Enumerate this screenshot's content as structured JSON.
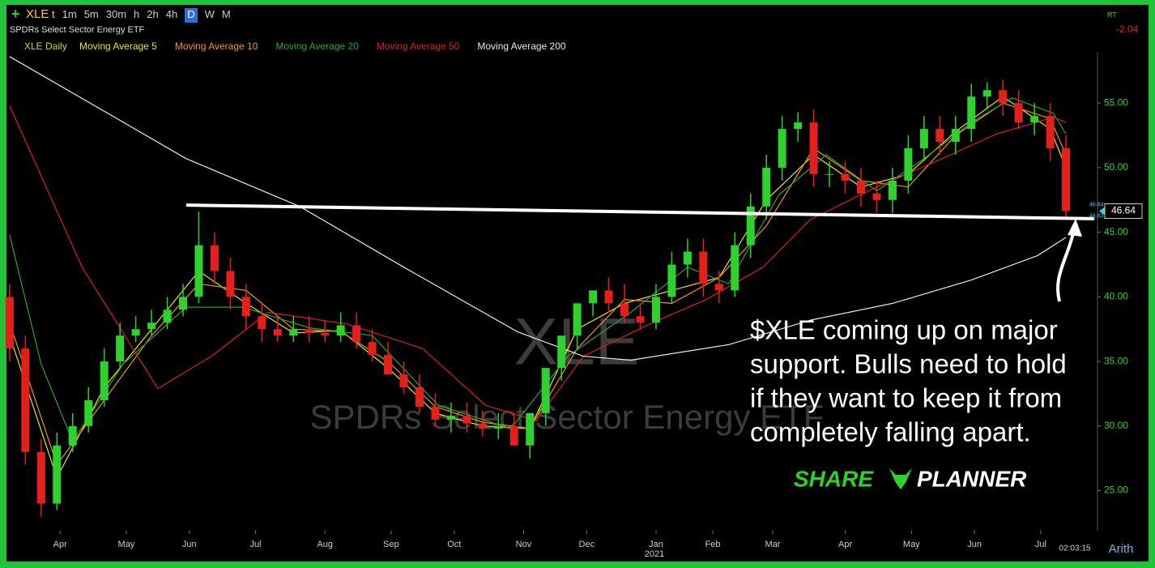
{
  "toolbar": {
    "symbol": "XLE",
    "intervals": [
      "t",
      "1m",
      "5m",
      "30m",
      "h",
      "2h",
      "4h",
      "D",
      "W",
      "M"
    ],
    "realtime": "RT",
    "change": "-2.04"
  },
  "legend_main": "XLE Daily",
  "annotation": [
    "$XLE coming up on major",
    "support. Bulls need to hold",
    "if they want to keep it from",
    "completely falling apart."
  ],
  "logo": {
    "left": "SHARE",
    "right": "PLANNER"
  },
  "footer": {
    "year": "2021",
    "clock": "02:03:15",
    "scale": "Arith"
  },
  "chart_data": {
    "type": "candlestick",
    "title": "XLE",
    "subtitle": "SPDRs Select Sector Energy ETF",
    "xlim": [
      -1,
      345
    ],
    "ylim": [
      21.9,
      58.9
    ],
    "xticks": [
      {
        "value": 16,
        "label": "Apr"
      },
      {
        "value": 37,
        "label": "May"
      },
      {
        "value": 57,
        "label": "Jun"
      },
      {
        "value": 78,
        "label": "Jul"
      },
      {
        "value": 100,
        "label": "Aug"
      },
      {
        "value": 121,
        "label": "Sep"
      },
      {
        "value": 141,
        "label": "Oct"
      },
      {
        "value": 163,
        "label": "Nov"
      },
      {
        "value": 183,
        "label": "Dec"
      },
      {
        "value": 205,
        "label": "Jan"
      },
      {
        "value": 223,
        "label": "Feb"
      },
      {
        "value": 242,
        "label": "Mar"
      },
      {
        "value": 265,
        "label": "Apr"
      },
      {
        "value": 286,
        "label": "May"
      },
      {
        "value": 306,
        "label": "Jun"
      },
      {
        "value": 327,
        "label": "Jul"
      }
    ],
    "yticks": [
      {
        "value": 25,
        "label": "25.00"
      },
      {
        "value": 30,
        "label": "30.00"
      },
      {
        "value": 35,
        "label": "35.00"
      },
      {
        "value": 40,
        "label": "40.00"
      },
      {
        "value": 45,
        "label": "45.00"
      },
      {
        "value": 50,
        "label": "50.00"
      },
      {
        "value": 55,
        "label": "55.00"
      }
    ],
    "up_color": "#2fd12f",
    "down_color": "#e3201b",
    "candles": {
      "x": [
        0,
        5,
        10,
        15,
        20,
        25,
        30,
        35,
        40,
        45,
        50,
        55,
        60,
        65,
        70,
        75,
        80,
        85,
        90,
        95,
        100,
        105,
        110,
        115,
        120,
        125,
        130,
        135,
        140,
        145,
        150,
        155,
        160,
        165,
        170,
        175,
        180,
        185,
        190,
        195,
        200,
        205,
        210,
        215,
        220,
        225,
        230,
        235,
        240,
        245,
        250,
        255,
        260,
        265,
        270,
        275,
        280,
        285,
        290,
        295,
        300,
        305,
        310,
        315,
        320,
        325,
        330,
        335
      ],
      "open": [
        40,
        36,
        28,
        24,
        28.5,
        30,
        32,
        35,
        37,
        37.5,
        38,
        39,
        40,
        44,
        42,
        40,
        38.5,
        37.5,
        37,
        37.5,
        37.2,
        37,
        37.8,
        36.5,
        35.5,
        34,
        33,
        31.5,
        30.5,
        30.8,
        30.2,
        29.8,
        30,
        28.5,
        31,
        34.5,
        37,
        39.5,
        40.5,
        39.5,
        38.5,
        38,
        40,
        42.5,
        43.5,
        41,
        40.5,
        44,
        47,
        50,
        53,
        53.5,
        49.5,
        49.5,
        49,
        48,
        47.5,
        49,
        51.5,
        53,
        52,
        53,
        55.5,
        56,
        55,
        53.5,
        54,
        51.5
      ],
      "high": [
        41,
        37,
        29,
        29.5,
        31,
        33,
        36,
        38,
        38.5,
        39,
        40,
        41,
        46.6,
        45,
        43,
        41,
        39.5,
        38.5,
        38.5,
        38.5,
        38.2,
        38.8,
        38.8,
        37.5,
        36.5,
        35,
        34,
        32.5,
        31.8,
        31.8,
        31.2,
        31,
        31,
        30,
        32,
        35.5,
        38,
        40.5,
        41.5,
        41,
        39.5,
        41,
        43.5,
        44.5,
        44.5,
        42,
        45,
        48,
        51,
        54,
        54.3,
        54.5,
        50.5,
        50.5,
        50,
        49,
        50,
        52.5,
        54,
        54,
        54,
        56.5,
        56.6,
        56.8,
        56,
        55,
        55,
        52.5
      ],
      "low": [
        35,
        27,
        23,
        23.5,
        28,
        29.5,
        31.5,
        34.5,
        36.5,
        37,
        37.5,
        38.5,
        39.5,
        41,
        39,
        37.5,
        36.5,
        36.5,
        36.5,
        36.5,
        36.5,
        36.5,
        36,
        35,
        34,
        32.5,
        31,
        30,
        29.5,
        29.5,
        29.2,
        29,
        28.5,
        27.5,
        30,
        33.5,
        36,
        38.5,
        38.8,
        38,
        37.5,
        37.5,
        39.5,
        41.5,
        40,
        39.5,
        40,
        43,
        46,
        49,
        52,
        48.5,
        48.5,
        48,
        47,
        46.5,
        46.5,
        48,
        50.5,
        51,
        51,
        52,
        54.5,
        54,
        53,
        52.5,
        50.5,
        46
      ],
      "close": [
        36,
        28,
        24,
        28.5,
        30,
        32,
        35,
        37,
        37.5,
        38,
        39,
        40,
        44,
        42,
        40,
        38.5,
        37.5,
        37,
        37.5,
        37.2,
        37,
        37.8,
        36.5,
        35.5,
        34,
        33,
        31.5,
        30.5,
        30.8,
        30.2,
        29.8,
        30,
        28.5,
        31,
        34.5,
        37,
        39.5,
        40.5,
        39.5,
        38.5,
        38,
        40,
        42.5,
        43.5,
        41,
        40.5,
        44,
        47,
        50,
        53,
        53.5,
        49.5,
        49.5,
        49,
        48,
        47.5,
        49,
        51.5,
        53,
        52,
        53,
        55.5,
        56,
        55,
        53.5,
        54,
        51.5,
        46.64
      ]
    },
    "last_price": 46.64,
    "price_marks": [
      {
        "value": 46.64,
        "label": "46.64"
      },
      {
        "value": 46.63,
        "label": "46.63"
      }
    ],
    "series": [
      {
        "name": "Moving Average 5",
        "color": "#e6e619",
        "x": [
          0,
          15,
          30,
          45,
          60,
          75,
          90,
          105,
          120,
          135,
          150,
          165,
          180,
          195,
          210,
          225,
          240,
          255,
          270,
          285,
          300,
          315,
          330,
          335
        ],
        "values": [
          37,
          26,
          33,
          37.5,
          42,
          39.5,
          37.2,
          37.4,
          34.5,
          31,
          30,
          29.8,
          37.5,
          39.5,
          40.5,
          41.5,
          47.5,
          51,
          48.5,
          49.5,
          52.8,
          55.5,
          53,
          50
        ]
      },
      {
        "name": "Moving Average 10",
        "color": "#f0961e",
        "x": [
          0,
          15,
          30,
          45,
          60,
          75,
          90,
          105,
          120,
          135,
          150,
          165,
          180,
          195,
          210,
          225,
          240,
          255,
          270,
          285,
          300,
          315,
          330,
          335
        ],
        "values": [
          38,
          27,
          32,
          37,
          41,
          40.5,
          37.5,
          37.3,
          35,
          31.5,
          30.3,
          29.8,
          36,
          39.8,
          39.5,
          41.5,
          45.5,
          51.5,
          49,
          48.5,
          52.5,
          55,
          53.8,
          51
        ]
      },
      {
        "name": "Moving Average 20",
        "color": "#2aa52a",
        "x": [
          0,
          10,
          20,
          36,
          56,
          74,
          95,
          115,
          136,
          159,
          177,
          197,
          215,
          228,
          244,
          259,
          275,
          290,
          305,
          318,
          331,
          335
        ],
        "values": [
          44.8,
          34.8,
          28.8,
          34.8,
          39.2,
          39.2,
          37.6,
          37,
          31.6,
          29.8,
          35.4,
          38.8,
          42.3,
          41,
          47.9,
          51,
          48.2,
          50.7,
          53.5,
          55.4,
          54.2,
          52.6
        ]
      },
      {
        "name": "Moving Average 50",
        "color": "#d92020",
        "x": [
          0,
          23,
          47,
          64,
          82,
          107,
          131,
          151,
          167,
          182,
          203,
          221,
          239,
          254,
          275,
          293,
          313,
          331,
          335
        ],
        "values": [
          54.8,
          42.3,
          32.9,
          35.4,
          38.8,
          37.9,
          36,
          31.6,
          30.4,
          35.4,
          37.9,
          39.8,
          42.3,
          46,
          48.5,
          50.4,
          52.6,
          53.9,
          53.5
        ]
      },
      {
        "name": "Moving Average 200",
        "color": "#e8e8e8",
        "x": [
          0,
          56,
          92,
          125,
          161,
          182,
          197,
          228,
          254,
          280,
          305,
          326,
          335
        ],
        "values": [
          58.6,
          50.7,
          47,
          42.3,
          37.3,
          35.4,
          35.1,
          36.3,
          38.2,
          39.5,
          41.3,
          43.2,
          44.6
        ]
      }
    ],
    "support_line": {
      "x": [
        56,
        344
      ],
      "y": [
        47.1,
        46.05
      ],
      "color": "#ffffff"
    }
  }
}
